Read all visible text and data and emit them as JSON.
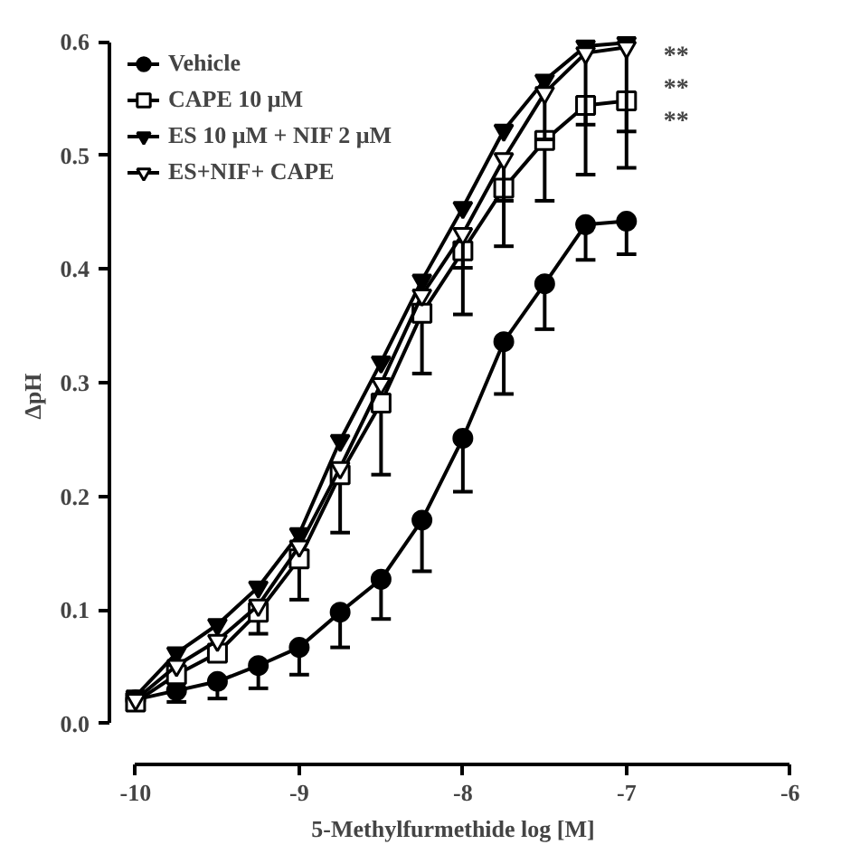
{
  "chart_data": {
    "type": "line",
    "xlabel": "5-Methylfurmethide log [M]",
    "ylabel": "ΔpH",
    "x": [
      -10,
      -9.75,
      -9.5,
      -9.25,
      -9,
      -8.75,
      -8.5,
      -8.25,
      -8,
      -7.75,
      -7.5,
      -7.25,
      -7
    ],
    "xlim": [
      -10,
      -6
    ],
    "xticks": [
      -10,
      -9,
      -8,
      -7,
      -6
    ],
    "ylim": [
      0,
      0.6
    ],
    "yticks": [
      {
        "value": 0,
        "label": "0.0"
      },
      0.1,
      0.2,
      0.3,
      0.4,
      0.5,
      0.6
    ],
    "grid": false,
    "legend": "top left",
    "line_style": "solid",
    "annotations": [
      "**",
      "**",
      "**"
    ],
    "series": [
      {
        "name": "Vehicle",
        "color": "#000000",
        "marker": "circle",
        "colors": [
          "#000000",
          "#000000",
          "#000000",
          "#000000",
          "#000000",
          "#000000",
          "#000000",
          "#000000",
          "#000000",
          "#000000",
          "#000000",
          "#000000",
          "#000000"
        ],
        "values": [
          0.021,
          0.029,
          0.037,
          0.051,
          0.067,
          0.098,
          0.127,
          0.179,
          0.251,
          0.336,
          0.387,
          0.439,
          0.442
        ],
        "errors": [
          null,
          [
            0.019,
            0.029
          ],
          [
            0.022,
            0.037
          ],
          [
            0.031,
            0.051
          ],
          [
            0.043,
            0.067
          ],
          [
            0.067,
            0.098
          ],
          [
            0.092,
            0.127
          ],
          [
            0.134,
            0.179
          ],
          [
            0.204,
            0.251
          ],
          [
            0.29,
            0.336
          ],
          [
            0.347,
            0.387
          ],
          [
            0.408,
            0.439
          ],
          [
            0.413,
            0.442
          ]
        ]
      },
      {
        "name": "CAPE 10 μM",
        "color": "#000000",
        "marker": "square",
        "colors": [
          "#ffffff",
          "#ffffff",
          "#ffffff",
          "#ffffff",
          "#ffffff",
          "#ffffff",
          "#ffffff",
          "#ffffff",
          "#ffffff",
          "#ffffff",
          "#ffffff",
          "#ffffff",
          "#ffffff"
        ],
        "values": [
          0.019,
          0.043,
          0.062,
          0.098,
          0.145,
          0.219,
          0.282,
          0.361,
          0.416,
          0.471,
          0.513,
          0.544,
          0.548
        ],
        "errors": [
          null,
          null,
          null,
          [
            0.079,
            0.098
          ],
          [
            0.109,
            0.145
          ],
          [
            0.168,
            0.219
          ],
          [
            0.219,
            0.282
          ],
          [
            0.308,
            0.361
          ],
          [
            0.36,
            0.416
          ],
          [
            0.42,
            0.471
          ],
          [
            0.46,
            0.513
          ],
          [
            0.483,
            0.544
          ],
          [
            0.489,
            0.548
          ]
        ]
      },
      {
        "name": "ES 10 μM + NIF 2 μM",
        "color": "#000000",
        "marker": "triangle",
        "colors": [
          "#000000",
          "#000000",
          "#000000",
          "#000000",
          "#000000",
          "#000000",
          "#000000",
          "#000000",
          "#000000",
          "#000000",
          "#000000",
          "#000000",
          "#000000"
        ],
        "values": [
          0.024,
          0.062,
          0.087,
          0.12,
          0.167,
          0.249,
          0.318,
          0.39,
          0.454,
          0.522,
          0.566,
          0.596,
          0.599
        ]
      },
      {
        "name": "ES+NIF+ CAPE",
        "color": "#000000",
        "marker": "triangle",
        "colors": [
          "#ffffff",
          "#ffffff",
          "#ffffff",
          "#ffffff",
          "#ffffff",
          "#ffffff",
          "#ffffff",
          "#ffffff",
          "#ffffff",
          "#ffffff",
          "#ffffff",
          "#ffffff",
          "#ffffff"
        ],
        "values": [
          0.021,
          0.051,
          0.073,
          0.104,
          0.156,
          0.225,
          0.299,
          0.377,
          0.431,
          0.497,
          0.555,
          0.59,
          0.595
        ],
        "errors": [
          null,
          null,
          null,
          null,
          null,
          null,
          null,
          null,
          [
            0.401,
            0.431
          ],
          [
            0.46,
            0.497
          ],
          [
            0.514,
            0.555
          ],
          [
            0.527,
            0.59
          ],
          [
            0.521,
            0.595
          ]
        ]
      }
    ]
  }
}
